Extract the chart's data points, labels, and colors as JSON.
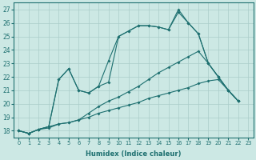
{
  "title": "",
  "xlabel": "Humidex (Indice chaleur)",
  "bg_color": "#cce8e4",
  "grid_color": "#aaccca",
  "line_color": "#1e7070",
  "xlim": [
    -0.5,
    23.5
  ],
  "ylim": [
    17.5,
    27.5
  ],
  "xticks": [
    0,
    1,
    2,
    3,
    4,
    5,
    6,
    7,
    8,
    9,
    10,
    11,
    12,
    13,
    14,
    15,
    16,
    17,
    18,
    19,
    20,
    21,
    22,
    23
  ],
  "yticks": [
    18,
    19,
    20,
    21,
    22,
    23,
    24,
    25,
    26,
    27
  ],
  "series": [
    [
      18.0,
      17.8,
      18.1,
      18.3,
      21.8,
      22.6,
      21.0,
      20.8,
      21.3,
      23.2,
      25.0,
      25.4,
      25.8,
      25.8,
      25.7,
      25.5,
      26.8,
      26.0,
      25.2,
      23.0,
      22.0,
      21.0,
      20.2,
      null
    ],
    [
      18.0,
      17.8,
      18.1,
      18.3,
      18.5,
      18.6,
      18.8,
      19.3,
      19.8,
      20.2,
      20.5,
      20.9,
      21.3,
      21.8,
      22.3,
      22.7,
      23.1,
      23.5,
      23.9,
      23.0,
      22.0,
      21.0,
      20.2,
      null
    ],
    [
      18.0,
      17.8,
      18.1,
      18.2,
      18.5,
      18.6,
      18.8,
      19.0,
      19.3,
      19.5,
      19.7,
      19.9,
      20.1,
      20.4,
      20.6,
      20.8,
      21.0,
      21.2,
      21.5,
      21.7,
      21.8,
      21.0,
      20.2,
      null
    ],
    [
      18.0,
      17.8,
      18.1,
      18.3,
      21.8,
      22.6,
      21.0,
      20.8,
      21.3,
      21.6,
      25.0,
      25.4,
      25.8,
      25.8,
      25.7,
      25.5,
      27.0,
      26.0,
      25.2,
      23.0,
      22.0,
      21.0,
      20.2,
      null
    ]
  ]
}
